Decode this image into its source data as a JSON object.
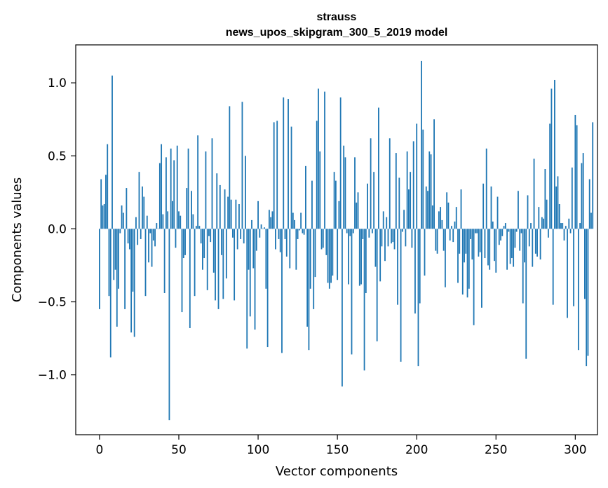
{
  "chart_data": {
    "type": "bar",
    "title": "strauss",
    "subtitle": "news_upos_skipgram_300_5_2019 model",
    "xlabel": "Vector components",
    "ylabel": "Components values",
    "xlim": [
      -15,
      314
    ],
    "ylim": [
      -1.41,
      1.26
    ],
    "x_ticks": [
      0,
      50,
      100,
      150,
      200,
      250,
      300
    ],
    "x_tick_labels": [
      "0",
      "50",
      "100",
      "150",
      "200",
      "250",
      "300"
    ],
    "y_ticks": [
      -1.0,
      -0.5,
      0.0,
      0.5,
      1.0
    ],
    "y_tick_labels": [
      "−1.0",
      "−0.5",
      "0.0",
      "0.5",
      "1.0"
    ],
    "bar_color": "#1f77b4",
    "values": [
      -0.55,
      0.34,
      0.16,
      0.17,
      0.37,
      0.58,
      -0.46,
      -0.88,
      1.05,
      -0.35,
      -0.28,
      -0.67,
      -0.41,
      -0.03,
      0.16,
      0.11,
      -0.55,
      0.28,
      -0.1,
      -0.14,
      -0.71,
      -0.43,
      -0.74,
      0.08,
      -0.11,
      0.39,
      -0.07,
      0.29,
      0.22,
      -0.46,
      0.09,
      -0.23,
      -0.03,
      -0.26,
      -0.08,
      -0.12,
      0.04,
      0.0,
      0.45,
      0.58,
      0.1,
      -0.44,
      0.49,
      0.12,
      -1.31,
      0.55,
      0.19,
      0.47,
      -0.13,
      0.57,
      0.12,
      0.09,
      -0.57,
      -0.2,
      -0.18,
      0.28,
      0.55,
      -0.68,
      0.26,
      0.1,
      -0.46,
      0.02,
      0.64,
      0.02,
      -0.1,
      -0.28,
      -0.2,
      0.53,
      -0.42,
      -0.05,
      -0.09,
      0.62,
      -0.3,
      -0.49,
      0.38,
      -0.55,
      0.3,
      -0.18,
      -0.48,
      0.27,
      -0.34,
      0.22,
      0.84,
      0.2,
      -0.06,
      -0.49,
      0.2,
      -0.14,
      0.17,
      -0.07,
      0.87,
      -0.1,
      0.5,
      -0.82,
      -0.28,
      -0.6,
      0.06,
      -0.27,
      -0.69,
      -0.15,
      0.19,
      -0.06,
      0.03,
      0.0,
      0.01,
      -0.41,
      -0.81,
      0.13,
      0.08,
      0.12,
      0.73,
      -0.14,
      0.74,
      -0.07,
      -0.16,
      -0.85,
      0.9,
      -0.07,
      -0.19,
      0.89,
      -0.27,
      0.7,
      0.11,
      0.06,
      -0.28,
      -0.07,
      -0.01,
      0.11,
      -0.03,
      -0.04,
      0.43,
      -0.67,
      -0.83,
      -0.41,
      0.33,
      -0.55,
      -0.33,
      0.74,
      0.96,
      0.53,
      -0.14,
      -0.13,
      0.94,
      -0.18,
      -0.37,
      -0.41,
      -0.37,
      -0.32,
      0.39,
      0.33,
      -0.35,
      0.19,
      0.9,
      -1.08,
      0.57,
      0.49,
      -0.03,
      -0.38,
      -0.05,
      -0.86,
      -0.03,
      0.49,
      0.18,
      0.25,
      -0.39,
      -0.38,
      -0.07,
      -0.97,
      -0.44,
      0.31,
      -0.06,
      0.62,
      -0.03,
      0.39,
      -0.26,
      -0.77,
      0.83,
      -0.36,
      -0.12,
      0.12,
      -0.22,
      0.08,
      -0.12,
      0.62,
      -0.1,
      -0.09,
      -0.14,
      0.52,
      -0.52,
      0.35,
      -0.91,
      -0.02,
      0.13,
      -0.12,
      0.53,
      0.27,
      0.39,
      -0.13,
      0.6,
      -0.58,
      0.72,
      -0.94,
      -0.51,
      1.15,
      0.68,
      -0.32,
      0.29,
      0.26,
      0.53,
      0.51,
      0.16,
      0.75,
      -0.15,
      -0.17,
      0.12,
      0.15,
      0.06,
      -0.15,
      -0.4,
      0.25,
      0.18,
      -0.08,
      0.02,
      -0.09,
      0.05,
      0.15,
      -0.37,
      -0.17,
      0.27,
      -0.45,
      -0.23,
      -0.17,
      -0.47,
      -0.41,
      -0.07,
      -0.21,
      -0.66,
      -0.03,
      -0.03,
      -0.19,
      -0.16,
      -0.54,
      0.31,
      -0.2,
      0.55,
      -0.25,
      -0.28,
      0.29,
      0.05,
      -0.22,
      -0.3,
      0.22,
      -0.11,
      -0.08,
      -0.05,
      0.02,
      0.04,
      -0.28,
      -0.02,
      -0.24,
      -0.2,
      -0.26,
      -0.13,
      -0.02,
      0.26,
      -0.15,
      -0.03,
      -0.51,
      -0.23,
      -0.89,
      0.23,
      -0.12,
      0.04,
      -0.26,
      0.48,
      -0.17,
      -0.19,
      0.15,
      -0.21,
      0.08,
      0.07,
      0.41,
      0.2,
      -0.06,
      0.72,
      0.96,
      -0.52,
      1.02,
      0.29,
      0.36,
      0.17,
      0.04,
      0.04,
      -0.08,
      0.02,
      -0.61,
      0.07,
      -0.03,
      0.42,
      -0.53,
      0.78,
      0.71,
      -0.83,
      0.04,
      0.45,
      0.52,
      -0.48,
      -0.94,
      -0.87,
      0.34,
      0.11,
      0.73
    ]
  }
}
